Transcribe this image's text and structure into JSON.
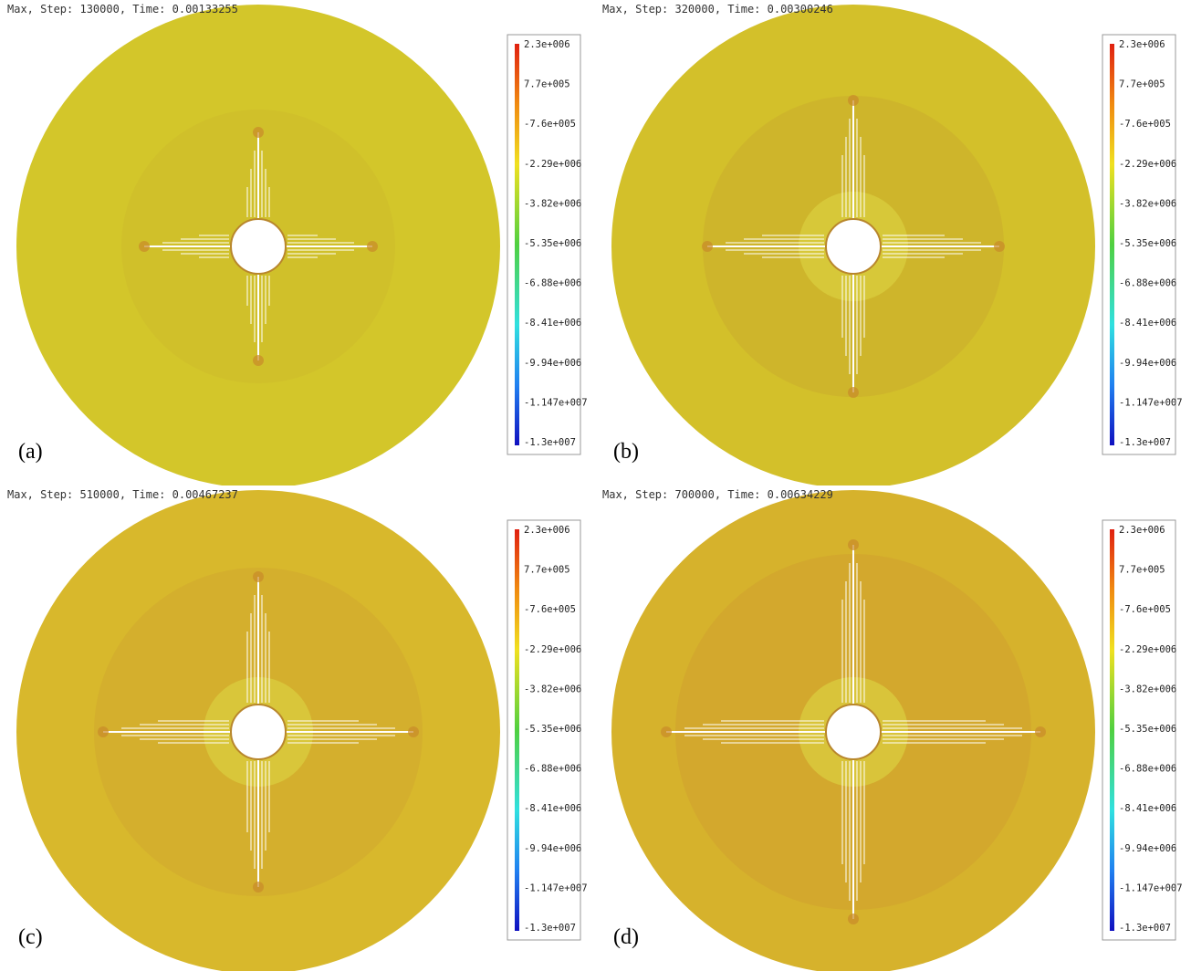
{
  "panels": [
    {
      "header": "Max, Step: 130000, Time: 0.00133255",
      "label": "(a)"
    },
    {
      "header": "Max, Step: 320000, Time: 0.00300246",
      "label": "(b)"
    },
    {
      "header": "Max, Step: 510000, Time: 0.00467237",
      "label": "(c)"
    },
    {
      "header": "Max, Step: 700000, Time: 0.00634229",
      "label": "(d)"
    }
  ],
  "colorbar": {
    "labels": [
      "2.3e+006",
      "7.7e+005",
      "-7.6e+005",
      "-2.29e+006",
      "-3.82e+006",
      "-5.35e+006",
      "-6.88e+006",
      "-8.41e+006",
      "-9.94e+006",
      "-1.147e+007",
      "-1.3e+007"
    ]
  }
}
